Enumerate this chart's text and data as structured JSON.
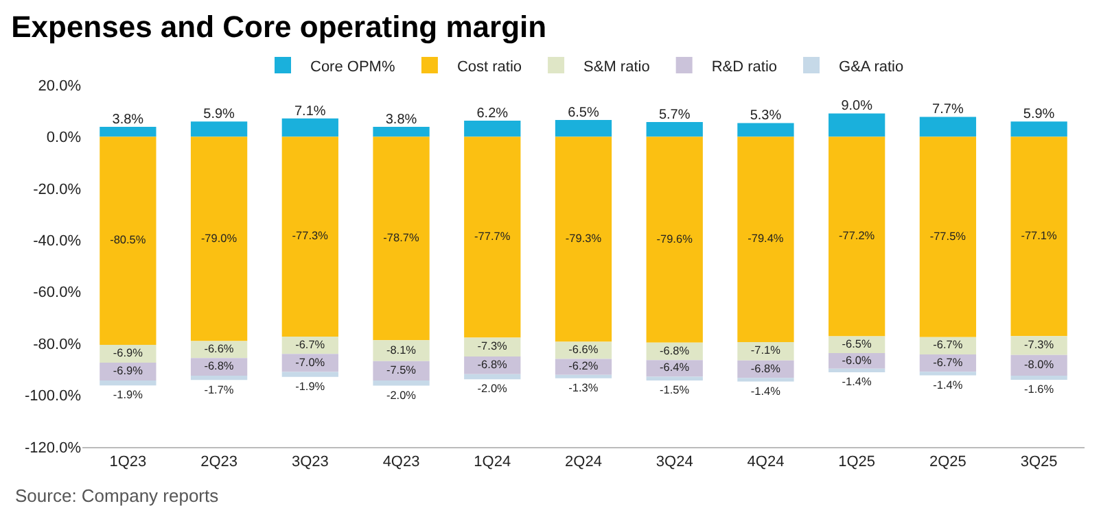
{
  "chart_data": {
    "type": "bar",
    "title": "Expenses and Core operating margin",
    "stacked": true,
    "categories": [
      "1Q23",
      "2Q23",
      "3Q23",
      "4Q23",
      "1Q24",
      "2Q24",
      "3Q24",
      "4Q24",
      "1Q25",
      "2Q25",
      "3Q25"
    ],
    "series": [
      {
        "name": "Core OPM%",
        "color": "#1ab0dc",
        "values": [
          3.8,
          5.9,
          7.1,
          3.8,
          6.2,
          6.5,
          5.7,
          5.3,
          9.0,
          7.7,
          5.9
        ],
        "value_labels": [
          "3.8%",
          "5.9%",
          "7.1%",
          "3.8%",
          "6.2%",
          "6.5%",
          "5.7%",
          "5.3%",
          "9.0%",
          "7.7%",
          "5.9%"
        ]
      },
      {
        "name": "Cost ratio",
        "color": "#fbc012",
        "values": [
          -80.5,
          -79.0,
          -77.3,
          -78.7,
          -77.7,
          -79.3,
          -79.6,
          -79.4,
          -77.2,
          -77.5,
          -77.1
        ],
        "value_labels": [
          "-80.5%",
          "-79.0%",
          "-77.3%",
          "-78.7%",
          "-77.7%",
          "-79.3%",
          "-79.6%",
          "-79.4%",
          "-77.2%",
          "-77.5%",
          "-77.1%"
        ]
      },
      {
        "name": "S&M ratio",
        "color": "#dfe6c6",
        "values": [
          -6.9,
          -6.6,
          -6.7,
          -8.1,
          -7.3,
          -6.6,
          -6.8,
          -7.1,
          -6.5,
          -6.7,
          -7.3
        ],
        "value_labels": [
          "-6.9%",
          "-6.6%",
          "-6.7%",
          "-8.1%",
          "-7.3%",
          "-6.6%",
          "-6.8%",
          "-7.1%",
          "-6.5%",
          "-6.7%",
          "-7.3%"
        ]
      },
      {
        "name": "R&D ratio",
        "color": "#cbc3da",
        "values": [
          -6.9,
          -6.8,
          -7.0,
          -7.5,
          -6.8,
          -6.2,
          -6.4,
          -6.8,
          -6.0,
          -6.7,
          -8.0
        ],
        "value_labels": [
          "-6.9%",
          "-6.8%",
          "-7.0%",
          "-7.5%",
          "-6.8%",
          "-6.2%",
          "-6.4%",
          "-6.8%",
          "-6.0%",
          "-6.7%",
          "-8.0%"
        ]
      },
      {
        "name": "G&A ratio",
        "color": "#c6d9e8",
        "values": [
          -1.9,
          -1.7,
          -1.9,
          -2.0,
          -2.0,
          -1.3,
          -1.5,
          -1.4,
          -1.4,
          -1.4,
          -1.6
        ],
        "value_labels": [
          "-1.9%",
          "-1.7%",
          "-1.9%",
          "-2.0%",
          "-2.0%",
          "-1.3%",
          "-1.5%",
          "-1.4%",
          "-1.4%",
          "-1.4%",
          "-1.6%"
        ]
      }
    ],
    "ylim": [
      -120,
      20
    ],
    "yticks": [
      {
        "value": 20,
        "label": "20.0%"
      },
      {
        "value": 0,
        "label": "0.0%"
      },
      {
        "value": -20,
        "label": "-20.0%"
      },
      {
        "value": -40,
        "label": "-40.0%"
      },
      {
        "value": -60,
        "label": "-60.0%"
      },
      {
        "value": -80,
        "label": "-80.0%"
      },
      {
        "value": -100,
        "label": "-100.0%"
      },
      {
        "value": -120,
        "label": "-120.0%"
      }
    ],
    "legend": "top",
    "annotations": [
      "Source: Company reports"
    ]
  }
}
